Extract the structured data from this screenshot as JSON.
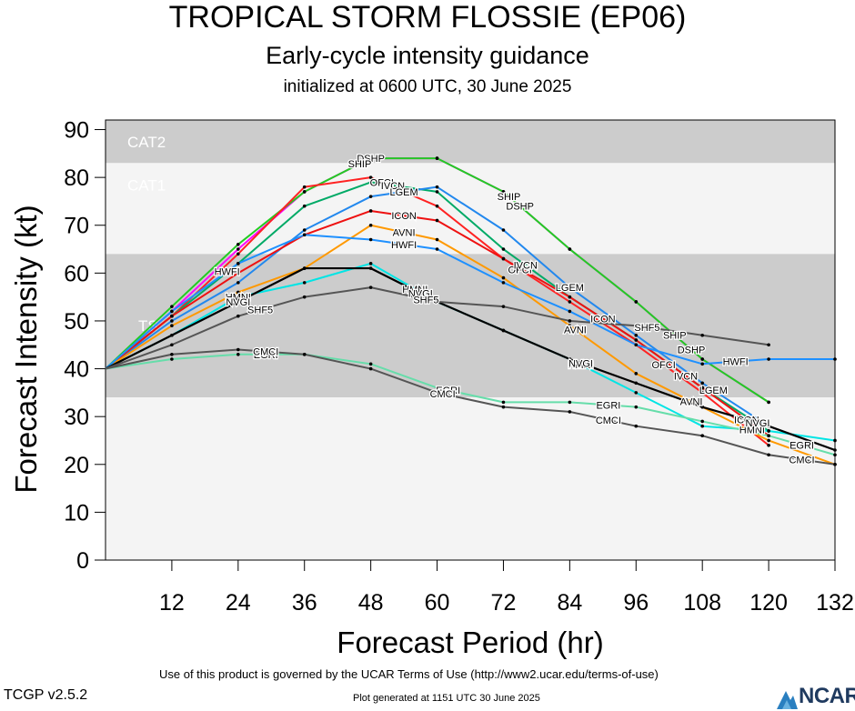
{
  "chart_data": {
    "type": "line",
    "title": "TROPICAL STORM FLOSSIE (EP06)",
    "subtitle": "Early-cycle intensity guidance",
    "initialized": "initialized at 0600 UTC, 30 June 2025",
    "xlabel": "Forecast Period (hr)",
    "ylabel": "Forecast Intensity (kt)",
    "xlim": [
      0,
      132
    ],
    "ylim": [
      0,
      92
    ],
    "x_ticks": [
      12,
      24,
      36,
      48,
      60,
      72,
      84,
      96,
      108,
      120,
      132
    ],
    "y_ticks": [
      0,
      10,
      20,
      30,
      40,
      50,
      60,
      70,
      80,
      90
    ],
    "bands": [
      {
        "label": "CAT2",
        "from": 83,
        "to": 92,
        "color": "#cccccc"
      },
      {
        "label": "CAT1",
        "from": 64,
        "to": 83,
        "color": "#f4f4f4"
      },
      {
        "label": "TS",
        "from": 34,
        "to": 64,
        "color": "#cccccc"
      },
      {
        "label": "",
        "from": 0,
        "to": 34,
        "color": "#f4f4f4"
      }
    ],
    "series": [
      {
        "name": "DSHP",
        "color": "#ff00ff",
        "x": [
          0,
          12,
          24,
          36,
          48,
          60,
          72,
          84,
          96,
          108,
          120
        ],
        "y": [
          40,
          52,
          65,
          77,
          84,
          84,
          77,
          65,
          54,
          42,
          33
        ],
        "labels": [
          [
            48,
            "DSHP"
          ],
          [
            75,
            "DSHP"
          ],
          [
            106,
            "DSHP"
          ]
        ]
      },
      {
        "name": "SHIP",
        "color": "#22cc22",
        "x": [
          0,
          12,
          24,
          36,
          48,
          60,
          72,
          84,
          96,
          108,
          120
        ],
        "y": [
          40,
          53,
          66,
          77,
          84,
          84,
          77,
          65,
          54,
          42,
          33
        ],
        "labels": [
          [
            46,
            "SHIP"
          ],
          [
            73,
            "SHIP"
          ],
          [
            103,
            "SHIP"
          ]
        ]
      },
      {
        "name": "OFCI",
        "color": "#ff2222",
        "x": [
          0,
          12,
          24,
          36,
          48,
          60,
          72,
          84,
          96,
          108,
          120
        ],
        "y": [
          40,
          51,
          64,
          78,
          80,
          74,
          63,
          54,
          45,
          35,
          24
        ],
        "labels": [
          [
            50,
            "OFCI"
          ],
          [
            75,
            "OFCI"
          ],
          [
            101,
            "OFCI"
          ]
        ]
      },
      {
        "name": "IVCN",
        "color": "#00aa66",
        "x": [
          0,
          12,
          24,
          36,
          48,
          60,
          72,
          84,
          96,
          108,
          120
        ],
        "y": [
          40,
          51,
          62,
          74,
          79,
          77,
          65,
          55,
          46,
          36,
          27
        ],
        "labels": [
          [
            52,
            "IVCN"
          ],
          [
            76,
            "IVCN"
          ],
          [
            105,
            "IVCN"
          ]
        ]
      },
      {
        "name": "LGEM",
        "color": "#2288ee",
        "x": [
          0,
          12,
          24,
          36,
          48,
          60,
          72,
          84,
          96,
          108,
          120
        ],
        "y": [
          40,
          50,
          58,
          69,
          76,
          78,
          69,
          57,
          47,
          37,
          28
        ],
        "labels": [
          [
            54,
            "LGEM"
          ],
          [
            84,
            "LGEM"
          ],
          [
            110,
            "LGEM"
          ]
        ]
      },
      {
        "name": "ICON",
        "color": "#ee1111",
        "x": [
          0,
          12,
          24,
          36,
          48,
          60,
          72,
          84,
          96,
          108,
          120
        ],
        "y": [
          40,
          51,
          60,
          68,
          73,
          71,
          63,
          55,
          46,
          36,
          26
        ],
        "labels": [
          [
            54,
            "ICON"
          ],
          [
            90,
            "ICON"
          ],
          [
            116,
            "ICON"
          ]
        ]
      },
      {
        "name": "AVNI",
        "color": "#ff9900",
        "x": [
          0,
          12,
          24,
          36,
          48,
          60,
          72,
          84,
          96,
          108,
          120,
          132
        ],
        "y": [
          40,
          49,
          56,
          61,
          70,
          67,
          59,
          49,
          39,
          32,
          25,
          20
        ],
        "labels": [
          [
            54,
            "AVNI"
          ],
          [
            85,
            "AVNI"
          ],
          [
            106,
            "AVNI"
          ]
        ]
      },
      {
        "name": "HWFI",
        "color": "#1e90ff",
        "x": [
          0,
          12,
          24,
          36,
          48,
          60,
          72,
          84,
          96,
          108,
          120,
          132
        ],
        "y": [
          40,
          52,
          62,
          68,
          67,
          65,
          58,
          52,
          45,
          41,
          42,
          42
        ],
        "labels": [
          [
            54,
            "HWFI"
          ],
          [
            22,
            "HWFI"
          ],
          [
            114,
            "HWFI"
          ]
        ]
      },
      {
        "name": "HMNI",
        "color": "#00e5e5",
        "x": [
          0,
          12,
          24,
          36,
          48,
          60,
          72,
          84,
          96,
          108,
          120,
          132
        ],
        "y": [
          40,
          47,
          55,
          58,
          62,
          54,
          48,
          42,
          35,
          28,
          27,
          25
        ],
        "labels": [
          [
            56,
            "HMNI"
          ],
          [
            24,
            "HMNI"
          ],
          [
            86,
            "HMNI"
          ],
          [
            117,
            "HMNI"
          ]
        ]
      },
      {
        "name": "NVGI",
        "color": "#000000",
        "x": [
          0,
          12,
          24,
          36,
          48,
          60,
          72,
          84,
          96,
          108,
          120,
          132
        ],
        "y": [
          40,
          47,
          54,
          61,
          61,
          54,
          48,
          42,
          37,
          32,
          28,
          23
        ],
        "labels": [
          [
            57,
            "NVGI"
          ],
          [
            24,
            "NVGI"
          ],
          [
            86,
            "NVGI"
          ],
          [
            118,
            "NVGI"
          ]
        ]
      },
      {
        "name": "SHF5",
        "color": "#555555",
        "x": [
          0,
          12,
          24,
          36,
          48,
          60,
          72,
          84,
          96,
          108,
          120
        ],
        "y": [
          40,
          45,
          51,
          55,
          57,
          54,
          53,
          50,
          49,
          47,
          45
        ],
        "labels": [
          [
            28,
            "SHF5"
          ],
          [
            58,
            "SHF5"
          ],
          [
            98,
            "SHF5"
          ]
        ]
      },
      {
        "name": "EGRI",
        "color": "#66ddaa",
        "x": [
          0,
          12,
          24,
          36,
          48,
          60,
          72,
          84,
          96,
          108,
          120,
          132
        ],
        "y": [
          40,
          42,
          43,
          43,
          41,
          36,
          33,
          33,
          32,
          29,
          26,
          22
        ],
        "labels": [
          [
            29,
            "EGRI"
          ],
          [
            62,
            "EGRI"
          ],
          [
            91,
            "EGRI"
          ],
          [
            126,
            "EGRI"
          ]
        ]
      },
      {
        "name": "CMCI",
        "color": "#555555",
        "x": [
          0,
          12,
          24,
          36,
          48,
          60,
          72,
          84,
          96,
          108,
          120,
          132
        ],
        "y": [
          40,
          43,
          44,
          43,
          40,
          35,
          32,
          31,
          28,
          26,
          22,
          20
        ],
        "labels": [
          [
            29,
            "CMCI"
          ],
          [
            61,
            "CMCI"
          ],
          [
            91,
            "CMCI"
          ],
          [
            126,
            "CMCI"
          ]
        ]
      }
    ]
  },
  "footer": {
    "terms": "Use of this product is governed by the UCAR Terms of Use (http://www2.ucar.edu/terms-of-use)",
    "version": "TCGP v2.5.2",
    "generated": "Plot generated at 1151 UTC   30 June 2025",
    "logo": "NCAR"
  }
}
